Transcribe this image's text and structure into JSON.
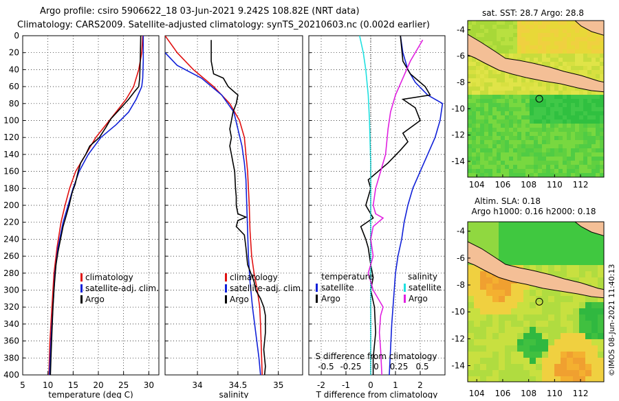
{
  "title_line1": "Argo profile: csiro 5906622_18 03-Jun-2021 9.242S 108.82E (NRT data)",
  "title_line2": "Climatology: CARS2009. Satellite-adjusted climatology: synTS_20210603.nc (0.002d earlier)",
  "watermark": "©IMOS 08-Jun-2021 11:40:13",
  "colors": {
    "climatology": "#e01010",
    "satellite": "#1020d8",
    "argo": "#000000",
    "sat_salinity": "#20e0e0",
    "argo_salinity": "#e020e0"
  },
  "chart_data": [
    {
      "type": "line",
      "name": "temperature-profile",
      "xlabel": "temperature (deg C)",
      "ylabel": "",
      "xlim": [
        5,
        32
      ],
      "ylim": [
        400,
        0
      ],
      "xticks": [
        5,
        10,
        15,
        20,
        25,
        30
      ],
      "yticks": [
        0,
        20,
        40,
        60,
        80,
        100,
        120,
        140,
        160,
        180,
        200,
        220,
        240,
        260,
        280,
        300,
        320,
        340,
        360,
        380,
        400
      ],
      "legend": [
        "climatology",
        "satellite-adj. clim.",
        "Argo"
      ],
      "series": [
        {
          "name": "climatology",
          "color": "#e01010",
          "points": [
            [
              28.8,
              0
            ],
            [
              28.6,
              20
            ],
            [
              28.0,
              40
            ],
            [
              27.0,
              60
            ],
            [
              25.5,
              75
            ],
            [
              23.5,
              90
            ],
            [
              21.5,
              105
            ],
            [
              19.5,
              120
            ],
            [
              17.5,
              140
            ],
            [
              15.5,
              160
            ],
            [
              14.3,
              180
            ],
            [
              13.4,
              200
            ],
            [
              12.6,
              220
            ],
            [
              11.8,
              250
            ],
            [
              11.2,
              280
            ],
            [
              10.8,
              320
            ],
            [
              10.4,
              360
            ],
            [
              10.2,
              400
            ]
          ]
        },
        {
          "name": "satellite-adj. clim.",
          "color": "#1020d8",
          "points": [
            [
              28.9,
              0
            ],
            [
              28.9,
              30
            ],
            [
              28.8,
              50
            ],
            [
              28.6,
              60
            ],
            [
              27.5,
              75
            ],
            [
              26.0,
              90
            ],
            [
              23.5,
              105
            ],
            [
              20.5,
              120
            ],
            [
              18.0,
              140
            ],
            [
              16.2,
              160
            ],
            [
              15.0,
              180
            ],
            [
              14.0,
              200
            ],
            [
              13.0,
              220
            ],
            [
              12.0,
              250
            ],
            [
              11.4,
              280
            ],
            [
              11.0,
              320
            ],
            [
              10.6,
              360
            ],
            [
              10.3,
              400
            ]
          ]
        },
        {
          "name": "Argo",
          "color": "#000000",
          "points": [
            [
              28.4,
              0
            ],
            [
              28.3,
              30
            ],
            [
              28.2,
              50
            ],
            [
              28.0,
              60
            ],
            [
              27.3,
              65
            ],
            [
              26.0,
              75
            ],
            [
              24.5,
              85
            ],
            [
              22.5,
              98
            ],
            [
              21.5,
              108
            ],
            [
              20.2,
              120
            ],
            [
              18.3,
              130
            ],
            [
              17.5,
              140
            ],
            [
              16.5,
              150
            ],
            [
              16.0,
              160
            ],
            [
              15.4,
              175
            ],
            [
              14.8,
              185
            ],
            [
              14.2,
              200
            ],
            [
              13.5,
              215
            ],
            [
              13.0,
              225
            ],
            [
              12.5,
              240
            ],
            [
              12.0,
              255
            ],
            [
              11.6,
              270
            ],
            [
              11.4,
              285
            ],
            [
              11.2,
              300
            ],
            [
              11.0,
              320
            ],
            [
              10.8,
              350
            ],
            [
              10.6,
              380
            ],
            [
              10.5,
              400
            ]
          ]
        }
      ]
    },
    {
      "type": "line",
      "name": "salinity-profile",
      "xlabel": "salinity",
      "xlim": [
        33.6,
        35.3
      ],
      "ylim": [
        400,
        0
      ],
      "xticks": [
        34,
        34.5,
        35
      ],
      "legend": [
        "climatology",
        "satellite-adj. clim.",
        "Argo"
      ],
      "series": [
        {
          "name": "climatology",
          "color": "#e01010",
          "points": [
            [
              33.6,
              0
            ],
            [
              33.75,
              20
            ],
            [
              33.95,
              40
            ],
            [
              34.2,
              60
            ],
            [
              34.4,
              80
            ],
            [
              34.52,
              100
            ],
            [
              34.58,
              120
            ],
            [
              34.6,
              140
            ],
            [
              34.62,
              160
            ],
            [
              34.63,
              180
            ],
            [
              34.64,
              200
            ],
            [
              34.65,
              230
            ],
            [
              34.67,
              260
            ],
            [
              34.7,
              280
            ],
            [
              34.74,
              300
            ],
            [
              34.77,
              320
            ],
            [
              34.78,
              340
            ],
            [
              34.79,
              370
            ],
            [
              34.8,
              400
            ]
          ]
        },
        {
          "name": "satellite-adj. clim.",
          "color": "#1020d8",
          "points": [
            [
              33.6,
              20
            ],
            [
              33.75,
              35
            ],
            [
              34.05,
              50
            ],
            [
              34.3,
              70
            ],
            [
              34.45,
              90
            ],
            [
              34.5,
              110
            ],
            [
              34.55,
              130
            ],
            [
              34.58,
              150
            ],
            [
              34.6,
              170
            ],
            [
              34.61,
              200
            ],
            [
              34.62,
              230
            ],
            [
              34.63,
              260
            ],
            [
              34.65,
              290
            ],
            [
              34.68,
              320
            ],
            [
              34.72,
              350
            ],
            [
              34.76,
              380
            ],
            [
              34.78,
              400
            ]
          ]
        },
        {
          "name": "Argo",
          "color": "#000000",
          "points": [
            [
              34.17,
              5
            ],
            [
              34.17,
              30
            ],
            [
              34.2,
              45
            ],
            [
              34.32,
              50
            ],
            [
              34.38,
              60
            ],
            [
              34.5,
              70
            ],
            [
              34.48,
              80
            ],
            [
              34.44,
              90
            ],
            [
              34.42,
              100
            ],
            [
              34.4,
              110
            ],
            [
              34.42,
              120
            ],
            [
              34.4,
              130
            ],
            [
              34.42,
              140
            ],
            [
              34.44,
              150
            ],
            [
              34.46,
              160
            ],
            [
              34.47,
              180
            ],
            [
              34.48,
              190
            ],
            [
              34.48,
              200
            ],
            [
              34.5,
              210
            ],
            [
              34.6,
              214
            ],
            [
              34.5,
              218
            ],
            [
              34.48,
              225
            ],
            [
              34.58,
              235
            ],
            [
              34.6,
              250
            ],
            [
              34.62,
              270
            ],
            [
              34.7,
              290
            ],
            [
              34.72,
              300
            ],
            [
              34.78,
              310
            ],
            [
              34.82,
              320
            ],
            [
              34.84,
              330
            ],
            [
              34.84,
              350
            ],
            [
              34.82,
              370
            ],
            [
              34.83,
              380
            ],
            [
              34.84,
              390
            ],
            [
              34.83,
              400
            ]
          ]
        }
      ]
    },
    {
      "type": "line",
      "name": "difference-profile",
      "xlabel": "T difference from climatology",
      "xlabel_top": "S difference from climatology",
      "xlim": [
        -2.5,
        3
      ],
      "ylim": [
        400,
        0
      ],
      "xticks": [
        -2,
        -1,
        0,
        1,
        2
      ],
      "top_ticks": [
        "-0.5",
        "-0.25",
        "0",
        "0.25",
        "0.5"
      ],
      "legend_left": {
        "title": "temperature",
        "entries": [
          "satellite",
          "Argo"
        ]
      },
      "legend_right": {
        "title": "salinity",
        "entries": [
          "satellite",
          "Argo"
        ]
      },
      "series": [
        {
          "name": "T satellite",
          "color": "#1020d8",
          "points": [
            [
              1.2,
              0
            ],
            [
              1.3,
              20
            ],
            [
              1.5,
              40
            ],
            [
              1.8,
              55
            ],
            [
              2.3,
              70
            ],
            [
              2.9,
              80
            ],
            [
              2.8,
              100
            ],
            [
              2.6,
              120
            ],
            [
              2.3,
              140
            ],
            [
              2.0,
              160
            ],
            [
              1.7,
              180
            ],
            [
              1.5,
              200
            ],
            [
              1.35,
              220
            ],
            [
              1.25,
              240
            ],
            [
              1.1,
              260
            ],
            [
              1.0,
              280
            ],
            [
              0.95,
              300
            ],
            [
              0.85,
              340
            ],
            [
              0.8,
              370
            ],
            [
              0.75,
              400
            ]
          ]
        },
        {
          "name": "T Argo",
          "color": "#000000",
          "points": [
            [
              1.2,
              0
            ],
            [
              1.3,
              30
            ],
            [
              1.6,
              45
            ],
            [
              2.2,
              60
            ],
            [
              2.4,
              70
            ],
            [
              1.3,
              75
            ],
            [
              1.8,
              85
            ],
            [
              2.0,
              100
            ],
            [
              1.3,
              115
            ],
            [
              1.5,
              125
            ],
            [
              1.2,
              135
            ],
            [
              0.7,
              150
            ],
            [
              0.3,
              160
            ],
            [
              -0.1,
              170
            ],
            [
              0.0,
              180
            ],
            [
              -0.2,
              200
            ],
            [
              0.1,
              215
            ],
            [
              -0.4,
              225
            ],
            [
              -0.2,
              240
            ],
            [
              -0.1,
              250
            ],
            [
              0.0,
              270
            ],
            [
              0.1,
              285
            ],
            [
              0.0,
              300
            ],
            [
              0.15,
              320
            ],
            [
              0.2,
              350
            ],
            [
              0.1,
              380
            ],
            [
              0.1,
              400
            ]
          ]
        },
        {
          "name": "S satellite",
          "color": "#20e0e0",
          "points": [
            [
              -0.45,
              0
            ],
            [
              -0.3,
              20
            ],
            [
              -0.2,
              40
            ],
            [
              -0.1,
              70
            ],
            [
              -0.05,
              100
            ],
            [
              0.0,
              150
            ],
            [
              0.0,
              200
            ],
            [
              0.0,
              300
            ],
            [
              0.0,
              400
            ]
          ]
        },
        {
          "name": "S Argo",
          "color": "#e020e0",
          "points": [
            [
              2.1,
              5
            ],
            [
              1.9,
              15
            ],
            [
              1.6,
              30
            ],
            [
              1.3,
              50
            ],
            [
              1.0,
              70
            ],
            [
              0.8,
              90
            ],
            [
              0.7,
              110
            ],
            [
              0.6,
              140
            ],
            [
              0.4,
              160
            ],
            [
              0.2,
              180
            ],
            [
              0.1,
              200
            ],
            [
              0.2,
              210
            ],
            [
              0.5,
              215
            ],
            [
              0.1,
              225
            ],
            [
              0.0,
              240
            ],
            [
              0.1,
              260
            ],
            [
              -0.1,
              280
            ],
            [
              0.1,
              300
            ],
            [
              0.3,
              310
            ],
            [
              0.5,
              320
            ],
            [
              0.4,
              330
            ],
            [
              0.35,
              350
            ],
            [
              0.4,
              370
            ],
            [
              0.45,
              400
            ]
          ]
        }
      ]
    },
    {
      "type": "heatmap",
      "name": "sst-map",
      "title": "sat. SST: 28.7 Argo: 28.8",
      "xticks": [
        "104",
        "106",
        "108",
        "110",
        "112"
      ],
      "yticks": [
        "-4",
        "-6",
        "-8",
        "-10",
        "-12",
        "-14"
      ],
      "marker": [
        108.82,
        -9.242
      ]
    },
    {
      "type": "heatmap",
      "name": "sla-map",
      "title_line1": "Altim. SLA: 0.18",
      "title_line2": "Argo h1000: 0.16 h2000: 0.18",
      "xticks": [
        "104",
        "106",
        "108",
        "110",
        "112"
      ],
      "yticks": [
        "-4",
        "-6",
        "-8",
        "-10",
        "-12",
        "-14"
      ],
      "marker": [
        108.82,
        -9.242
      ]
    }
  ]
}
